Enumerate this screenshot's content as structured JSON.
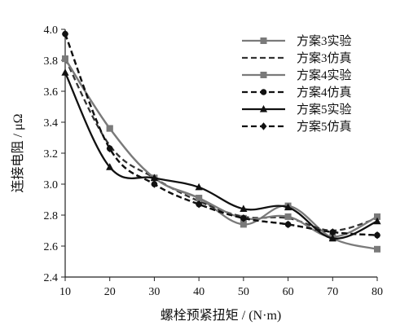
{
  "chart_data": {
    "type": "line",
    "title": "",
    "xlabel": "螺栓预紧扭矩 / (N·m)",
    "ylabel": "连接电阻 / μΩ",
    "xlim": [
      10,
      80
    ],
    "ylim": [
      2.4,
      4.0
    ],
    "x_ticks": [
      "10",
      "20",
      "30",
      "40",
      "50",
      "60",
      "70",
      "80"
    ],
    "y_ticks": [
      "2.4",
      "2.6",
      "2.8",
      "3.0",
      "3.2",
      "3.4",
      "3.6",
      "3.8",
      "4.0"
    ],
    "grid": false,
    "legend_position": "top-right",
    "x": [
      10,
      20,
      30,
      40,
      50,
      60,
      70,
      80
    ],
    "series": [
      {
        "name": "方案3实验",
        "values": [
          3.81,
          3.36,
          3.04,
          2.91,
          2.74,
          2.86,
          2.65,
          2.58
        ],
        "color": "#7a7a7a",
        "dash": "solid",
        "marker": "square"
      },
      {
        "name": "方案3仿真",
        "values": [
          3.81,
          3.25,
          3.04,
          2.89,
          2.79,
          2.78,
          2.7,
          2.78
        ],
        "color": "#333333",
        "dash": "dashed",
        "marker": "none"
      },
      {
        "name": "方案4实验",
        "values": [
          3.81,
          3.36,
          3.04,
          2.91,
          2.78,
          2.79,
          2.66,
          2.79
        ],
        "color": "#7a7a7a",
        "dash": "solid",
        "marker": "square"
      },
      {
        "name": "方案4仿真",
        "values": [
          3.97,
          3.23,
          3.0,
          2.87,
          2.78,
          2.74,
          2.69,
          2.67
        ],
        "color": "#111111",
        "dash": "dashed",
        "marker": "circle"
      },
      {
        "name": "方案5实验",
        "values": [
          3.72,
          3.11,
          3.04,
          2.98,
          2.84,
          2.85,
          2.65,
          2.76
        ],
        "color": "#111111",
        "dash": "solid",
        "marker": "triangle"
      },
      {
        "name": "方案5仿真",
        "values": [
          3.97,
          3.23,
          3.0,
          2.87,
          2.78,
          2.74,
          2.69,
          2.67
        ],
        "color": "#111111",
        "dash": "dashed",
        "marker": "diamond"
      }
    ]
  }
}
